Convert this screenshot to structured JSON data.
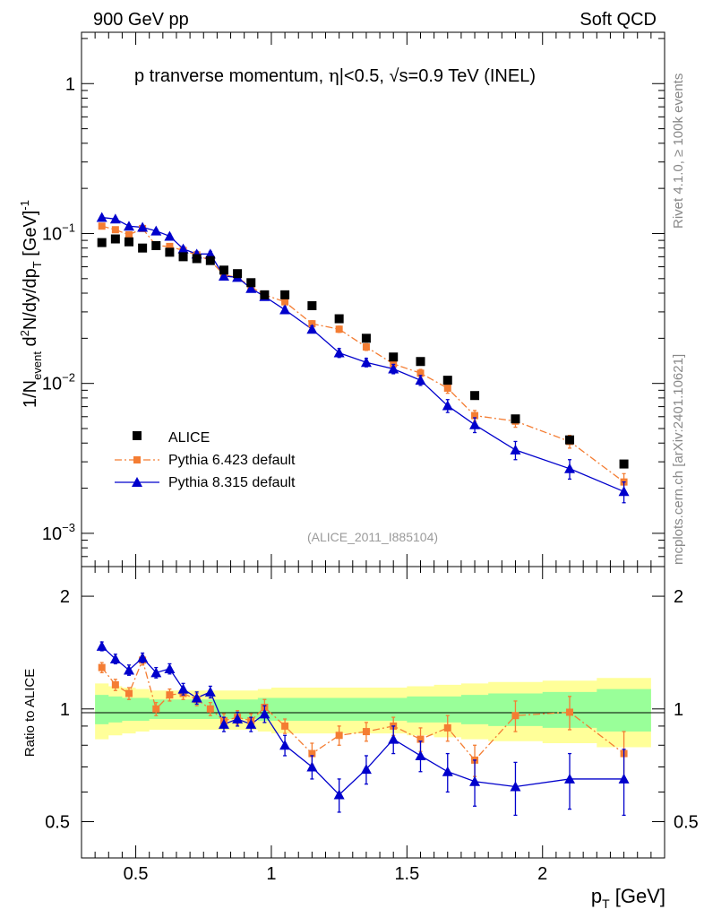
{
  "header": {
    "left": "900 GeV pp",
    "right": "Soft QCD"
  },
  "side_labels": {
    "top": "Rivet 4.1.0, ≥ 100k events",
    "bottom": "mcplots.cern.ch [arXiv:2401.10621]"
  },
  "watermark": "(ALICE_2011_I885104)",
  "chart_data": {
    "type": "scatter",
    "title": "p tranverse momentum, |η|<0.5, √s=0.9 TeV (INEL)",
    "title_parts": [
      "p tranverse momentum, ",
      "η",
      "|<0.5, ",
      "√",
      "s=0.9 TeV (INEL)"
    ],
    "xlabel": "p_T [GeV]",
    "xlabel_parts": [
      "p",
      "T",
      " [GeV]"
    ],
    "ylabel": "1/N_event d²N/dy/dp_T [GeV]⁻¹",
    "ylabel_parts": [
      "1/N",
      "event",
      " d",
      "2",
      "N/dy/dp",
      "T",
      " [GeV]",
      "-1"
    ],
    "ratio_ylabel": "Ratio to ALICE",
    "xlim": [
      0.3,
      2.45
    ],
    "ylim_log": [
      0.0006,
      2.2
    ],
    "ratio_ylim": [
      0.4,
      2.4
    ],
    "x_ticks": [
      {
        "v": 0.5,
        "label": "0.5"
      },
      {
        "v": 1,
        "label": "1"
      },
      {
        "v": 1.5,
        "label": "1.5"
      },
      {
        "v": 2,
        "label": "2"
      }
    ],
    "y_ticks": [
      {
        "v": 1,
        "base": "1",
        "exp": ""
      },
      {
        "v": 0.1,
        "base": "10",
        "exp": "−1"
      },
      {
        "v": 0.01,
        "base": "10",
        "exp": "−2"
      },
      {
        "v": 0.001,
        "base": "10",
        "exp": "−3"
      }
    ],
    "ratio_ticks": [
      {
        "v": 0.5,
        "label": "0.5"
      },
      {
        "v": 1,
        "label": "1"
      },
      {
        "v": 2,
        "label": "2"
      }
    ],
    "x": [
      0.375,
      0.425,
      0.475,
      0.525,
      0.575,
      0.625,
      0.675,
      0.725,
      0.775,
      0.825,
      0.875,
      0.925,
      0.975,
      1.05,
      1.15,
      1.25,
      1.35,
      1.45,
      1.55,
      1.65,
      1.75,
      1.9,
      2.1,
      2.3
    ],
    "series": [
      {
        "name": "ALICE",
        "color": "#000000",
        "marker": "square",
        "line": "none",
        "values": [
          0.087,
          0.092,
          0.088,
          0.08,
          0.083,
          0.075,
          0.07,
          0.068,
          0.066,
          0.057,
          0.054,
          0.047,
          0.039,
          0.039,
          0.033,
          0.027,
          0.02,
          0.015,
          0.014,
          0.0105,
          0.0083,
          0.0058,
          0.0042,
          0.0029
        ]
      },
      {
        "name": "Pythia 6.423 default",
        "color": "#f47d33",
        "marker": "square",
        "line": "dashdot",
        "values": [
          0.112,
          0.106,
          0.098,
          0.108,
          0.083,
          0.082,
          0.077,
          0.072,
          0.066,
          0.053,
          0.051,
          0.044,
          0.039,
          0.035,
          0.025,
          0.023,
          0.0175,
          0.0135,
          0.0117,
          0.0093,
          0.0061,
          0.0056,
          0.0041,
          0.0022
        ],
        "errors": [
          0.003,
          0.003,
          0.003,
          0.003,
          0.003,
          0.003,
          0.003,
          0.003,
          0.003,
          0.002,
          0.002,
          0.002,
          0.002,
          0.0015,
          0.0012,
          0.0011,
          0.0009,
          0.0008,
          0.0007,
          0.0007,
          0.0005,
          0.0005,
          0.0004,
          0.0003
        ]
      },
      {
        "name": "Pythia 8.315 default",
        "color": "#0000cc",
        "marker": "triangle",
        "line": "solid",
        "values": [
          0.128,
          0.125,
          0.112,
          0.11,
          0.104,
          0.096,
          0.079,
          0.073,
          0.073,
          0.052,
          0.051,
          0.043,
          0.038,
          0.031,
          0.023,
          0.016,
          0.0138,
          0.0125,
          0.0105,
          0.0071,
          0.0053,
          0.0036,
          0.0027,
          0.0019
        ],
        "errors": [
          0.003,
          0.003,
          0.003,
          0.003,
          0.003,
          0.003,
          0.003,
          0.003,
          0.003,
          0.002,
          0.002,
          0.002,
          0.002,
          0.0015,
          0.0012,
          0.0011,
          0.0009,
          0.0009,
          0.0008,
          0.0007,
          0.0006,
          0.0005,
          0.0004,
          0.0003
        ]
      }
    ],
    "ratios": {
      "x_edges": [
        0.35,
        0.4,
        0.45,
        0.5,
        0.55,
        0.6,
        0.65,
        0.7,
        0.75,
        0.8,
        0.85,
        0.9,
        0.95,
        1.0,
        1.1,
        1.2,
        1.3,
        1.4,
        1.5,
        1.6,
        1.7,
        1.8,
        2.0,
        2.2,
        2.4
      ],
      "band_yellow": [
        0.17,
        0.15,
        0.14,
        0.13,
        0.12,
        0.12,
        0.12,
        0.12,
        0.12,
        0.12,
        0.12,
        0.12,
        0.13,
        0.14,
        0.14,
        0.14,
        0.14,
        0.14,
        0.15,
        0.16,
        0.17,
        0.18,
        0.19,
        0.21
      ],
      "band_green": [
        0.09,
        0.08,
        0.07,
        0.07,
        0.06,
        0.06,
        0.06,
        0.06,
        0.06,
        0.06,
        0.06,
        0.06,
        0.07,
        0.07,
        0.07,
        0.07,
        0.07,
        0.07,
        0.08,
        0.08,
        0.09,
        0.1,
        0.11,
        0.13
      ],
      "pythia6": [
        1.29,
        1.16,
        1.1,
        1.35,
        1.0,
        1.09,
        1.1,
        1.06,
        1.0,
        0.93,
        0.95,
        0.93,
        1.01,
        0.9,
        0.76,
        0.85,
        0.87,
        0.9,
        0.83,
        0.89,
        0.73,
        0.96,
        0.98,
        0.76
      ],
      "pythia6_err": [
        0.04,
        0.04,
        0.04,
        0.04,
        0.04,
        0.04,
        0.04,
        0.04,
        0.04,
        0.04,
        0.04,
        0.04,
        0.05,
        0.04,
        0.05,
        0.05,
        0.05,
        0.05,
        0.06,
        0.07,
        0.07,
        0.09,
        0.1,
        0.11
      ],
      "pythia8": [
        1.47,
        1.36,
        1.27,
        1.37,
        1.25,
        1.28,
        1.13,
        1.07,
        1.11,
        0.91,
        0.94,
        0.91,
        0.97,
        0.8,
        0.7,
        0.59,
        0.69,
        0.83,
        0.75,
        0.68,
        0.64,
        0.62,
        0.65,
        0.65
      ],
      "pythia8_err": [
        0.04,
        0.04,
        0.04,
        0.04,
        0.04,
        0.04,
        0.04,
        0.04,
        0.04,
        0.04,
        0.04,
        0.04,
        0.05,
        0.05,
        0.05,
        0.06,
        0.06,
        0.07,
        0.07,
        0.08,
        0.09,
        0.1,
        0.11,
        0.13
      ]
    },
    "legend": {
      "location": "lower-left",
      "entries": [
        "ALICE",
        "Pythia 6.423 default",
        "Pythia 8.315 default"
      ]
    }
  }
}
